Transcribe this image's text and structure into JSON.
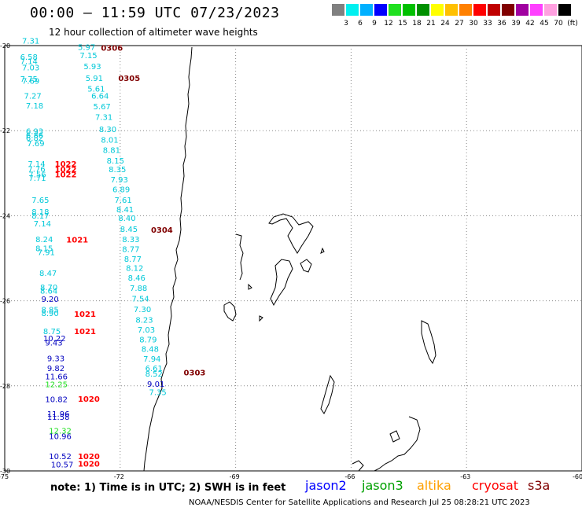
{
  "header": {
    "title": "00:00 – 11:59 UTC 07/23/2023",
    "subtitle": "12 hour collection of altimeter wave heights"
  },
  "legend": {
    "unit_label": "(ft)",
    "items": [
      {
        "label": "3",
        "color": "#808080"
      },
      {
        "label": "6",
        "color": "#00f0f0"
      },
      {
        "label": "9",
        "color": "#00b0ff"
      },
      {
        "label": "12",
        "color": "#0000ff"
      },
      {
        "label": "15",
        "color": "#20e020"
      },
      {
        "label": "18",
        "color": "#00c000"
      },
      {
        "label": "21",
        "color": "#009000"
      },
      {
        "label": "24",
        "color": "#ffff00"
      },
      {
        "label": "27",
        "color": "#ffc000"
      },
      {
        "label": "30",
        "color": "#ff8000"
      },
      {
        "label": "33",
        "color": "#ff0000"
      },
      {
        "label": "36",
        "color": "#c00000"
      },
      {
        "label": "39",
        "color": "#800000"
      },
      {
        "label": "42",
        "color": "#a000a0"
      },
      {
        "label": "45",
        "color": "#ff40ff"
      },
      {
        "label": "70",
        "color": "#ffa0e0"
      },
      {
        "label": "",
        "color": "#000000"
      }
    ]
  },
  "axes": {
    "lon_labels": [
      "-75",
      "-72",
      "-69",
      "-66",
      "-63",
      "-60"
    ],
    "lat_labels": [
      "-20",
      "-22",
      "-24",
      "-26",
      "-28",
      "-30"
    ]
  },
  "observations": [
    {
      "text": "7.31",
      "lon": -74.55,
      "lat": -19.95,
      "color": "#00c8d8"
    },
    {
      "text": "5.97",
      "lon": -73.1,
      "lat": -20.1,
      "color": "#00c8d8"
    },
    {
      "text": "0306",
      "lon": -72.5,
      "lat": -20.12,
      "color": "#800000",
      "big": true
    },
    {
      "text": "7.15",
      "lon": -73.05,
      "lat": -20.3,
      "color": "#00c8d8"
    },
    {
      "text": "6.58",
      "lon": -74.6,
      "lat": -20.33,
      "color": "#00c8d8"
    },
    {
      "text": "7.14",
      "lon": -74.6,
      "lat": -20.43,
      "color": "#00c8d8"
    },
    {
      "text": "5.93",
      "lon": -72.95,
      "lat": -20.55,
      "color": "#00c8d8"
    },
    {
      "text": "7.03",
      "lon": -74.55,
      "lat": -20.58,
      "color": "#00c8d8"
    },
    {
      "text": "7.75",
      "lon": -74.6,
      "lat": -20.85,
      "color": "#00c8d8"
    },
    {
      "text": "7.69",
      "lon": -74.55,
      "lat": -20.9,
      "color": "#00c8d8"
    },
    {
      "text": "5.91",
      "lon": -72.9,
      "lat": -20.83,
      "color": "#00c8d8"
    },
    {
      "text": "0305",
      "lon": -72.05,
      "lat": -20.83,
      "color": "#800000",
      "big": true
    },
    {
      "text": "5.61",
      "lon": -72.85,
      "lat": -21.08,
      "color": "#00c8d8"
    },
    {
      "text": "7.27",
      "lon": -74.5,
      "lat": -21.25,
      "color": "#00c8d8"
    },
    {
      "text": "6.64",
      "lon": -72.75,
      "lat": -21.25,
      "color": "#00c8d8"
    },
    {
      "text": "7.18",
      "lon": -74.45,
      "lat": -21.48,
      "color": "#00c8d8"
    },
    {
      "text": "5.67",
      "lon": -72.7,
      "lat": -21.5,
      "color": "#00c8d8"
    },
    {
      "text": "7.31",
      "lon": -72.65,
      "lat": -21.75,
      "color": "#00c8d8"
    },
    {
      "text": "6.93",
      "lon": -74.45,
      "lat": -22.08,
      "color": "#00c8d8"
    },
    {
      "text": "8.30",
      "lon": -72.55,
      "lat": -22.03,
      "color": "#00c8d8"
    },
    {
      "text": "6.86",
      "lon": -74.45,
      "lat": -22.17,
      "color": "#00c8d8"
    },
    {
      "text": "6.82",
      "lon": -74.45,
      "lat": -22.24,
      "color": "#00c8d8"
    },
    {
      "text": "8.01",
      "lon": -72.5,
      "lat": -22.28,
      "color": "#00c8d8"
    },
    {
      "text": "7.69",
      "lon": -74.42,
      "lat": -22.37,
      "color": "#00c8d8"
    },
    {
      "text": "8.81",
      "lon": -72.45,
      "lat": -22.52,
      "color": "#00c8d8"
    },
    {
      "text": "7.14",
      "lon": -74.4,
      "lat": -22.85,
      "color": "#00c8d8"
    },
    {
      "text": "1022",
      "lon": -73.7,
      "lat": -22.85,
      "color": "#ff0000",
      "big": true
    },
    {
      "text": "8.15",
      "lon": -72.35,
      "lat": -22.77,
      "color": "#00c8d8"
    },
    {
      "text": "7.76",
      "lon": -74.4,
      "lat": -22.97,
      "color": "#00c8d8"
    },
    {
      "text": "1022",
      "lon": -73.7,
      "lat": -22.98,
      "color": "#ff0000",
      "big": true
    },
    {
      "text": "8.35",
      "lon": -72.3,
      "lat": -22.98,
      "color": "#00c8d8"
    },
    {
      "text": "7.56",
      "lon": -74.38,
      "lat": -23.1,
      "color": "#00c8d8"
    },
    {
      "text": "1022",
      "lon": -73.7,
      "lat": -23.1,
      "color": "#ff0000",
      "big": true
    },
    {
      "text": "7.71",
      "lon": -74.38,
      "lat": -23.18,
      "color": "#00c8d8"
    },
    {
      "text": "7.93",
      "lon": -72.25,
      "lat": -23.22,
      "color": "#00c8d8"
    },
    {
      "text": "6.89",
      "lon": -72.2,
      "lat": -23.45,
      "color": "#00c8d8"
    },
    {
      "text": "7.65",
      "lon": -74.3,
      "lat": -23.7,
      "color": "#00c8d8"
    },
    {
      "text": "7.61",
      "lon": -72.15,
      "lat": -23.7,
      "color": "#00c8d8"
    },
    {
      "text": "8.41",
      "lon": -72.1,
      "lat": -23.92,
      "color": "#00c8d8"
    },
    {
      "text": "8.18",
      "lon": -74.3,
      "lat": -23.97,
      "color": "#00c8d8"
    },
    {
      "text": "8.17",
      "lon": -74.3,
      "lat": -24.07,
      "color": "#00c8d8"
    },
    {
      "text": "8.40",
      "lon": -72.05,
      "lat": -24.12,
      "color": "#00c8d8"
    },
    {
      "text": "7.14",
      "lon": -74.25,
      "lat": -24.25,
      "color": "#00c8d8"
    },
    {
      "text": "8.45",
      "lon": -72.0,
      "lat": -24.38,
      "color": "#00c8d8"
    },
    {
      "text": "0304",
      "lon": -71.2,
      "lat": -24.4,
      "color": "#800000",
      "big": true
    },
    {
      "text": "8.24",
      "lon": -74.2,
      "lat": -24.62,
      "color": "#00c8d8"
    },
    {
      "text": "1021",
      "lon": -73.4,
      "lat": -24.63,
      "color": "#ff0000",
      "big": true
    },
    {
      "text": "8.33",
      "lon": -71.95,
      "lat": -24.62,
      "color": "#00c8d8"
    },
    {
      "text": "8.15",
      "lon": -74.2,
      "lat": -24.83,
      "color": "#00c8d8"
    },
    {
      "text": "8.77",
      "lon": -71.95,
      "lat": -24.85,
      "color": "#00c8d8"
    },
    {
      "text": "7.91",
      "lon": -74.15,
      "lat": -24.93,
      "color": "#00c8d8"
    },
    {
      "text": "8.77",
      "lon": -71.9,
      "lat": -25.08,
      "color": "#00c8d8"
    },
    {
      "text": "8.12",
      "lon": -71.85,
      "lat": -25.3,
      "color": "#00c8d8"
    },
    {
      "text": "8.47",
      "lon": -74.1,
      "lat": -25.42,
      "color": "#00c8d8"
    },
    {
      "text": "8.46",
      "lon": -71.8,
      "lat": -25.53,
      "color": "#00c8d8"
    },
    {
      "text": "8.70",
      "lon": -74.08,
      "lat": -25.75,
      "color": "#00c8d8"
    },
    {
      "text": "8.64",
      "lon": -74.08,
      "lat": -25.83,
      "color": "#00c8d8"
    },
    {
      "text": "7.88",
      "lon": -71.75,
      "lat": -25.77,
      "color": "#00c8d8"
    },
    {
      "text": "9.20",
      "lon": -74.05,
      "lat": -26.03,
      "color": "#0000c0"
    },
    {
      "text": "7.54",
      "lon": -71.7,
      "lat": -26.02,
      "color": "#00c8d8"
    },
    {
      "text": "8.85",
      "lon": -74.05,
      "lat": -26.28,
      "color": "#00c8d8"
    },
    {
      "text": "8.90",
      "lon": -74.05,
      "lat": -26.36,
      "color": "#00c8d8"
    },
    {
      "text": "1021",
      "lon": -73.2,
      "lat": -26.38,
      "color": "#ff0000",
      "big": true
    },
    {
      "text": "7.30",
      "lon": -71.65,
      "lat": -26.27,
      "color": "#00c8d8"
    },
    {
      "text": "8.23",
      "lon": -71.6,
      "lat": -26.52,
      "color": "#00c8d8"
    },
    {
      "text": "8.75",
      "lon": -74.0,
      "lat": -26.78,
      "color": "#00c8d8"
    },
    {
      "text": "1021",
      "lon": -73.2,
      "lat": -26.78,
      "color": "#ff0000",
      "big": true
    },
    {
      "text": "7.03",
      "lon": -71.55,
      "lat": -26.75,
      "color": "#00c8d8"
    },
    {
      "text": "10.22",
      "lon": -74.0,
      "lat": -26.95,
      "color": "#0000c0"
    },
    {
      "text": "9.43",
      "lon": -73.95,
      "lat": -27.05,
      "color": "#0000c0"
    },
    {
      "text": "8.79",
      "lon": -71.5,
      "lat": -26.98,
      "color": "#00c8d8"
    },
    {
      "text": "8.48",
      "lon": -71.45,
      "lat": -27.2,
      "color": "#00c8d8"
    },
    {
      "text": "9.33",
      "lon": -73.9,
      "lat": -27.42,
      "color": "#0000c0"
    },
    {
      "text": "7.94",
      "lon": -71.4,
      "lat": -27.43,
      "color": "#00c8d8"
    },
    {
      "text": "9.82",
      "lon": -73.9,
      "lat": -27.65,
      "color": "#0000c0"
    },
    {
      "text": "6.61",
      "lon": -71.35,
      "lat": -27.65,
      "color": "#00c8d8"
    },
    {
      "text": "0303",
      "lon": -70.35,
      "lat": -27.75,
      "color": "#800000",
      "big": true
    },
    {
      "text": "8.52",
      "lon": -71.35,
      "lat": -27.78,
      "color": "#00c8d8"
    },
    {
      "text": "11.66",
      "lon": -73.95,
      "lat": -27.85,
      "color": "#0000c0"
    },
    {
      "text": "9.01",
      "lon": -71.3,
      "lat": -28.02,
      "color": "#0000c0"
    },
    {
      "text": "12.25",
      "lon": -73.95,
      "lat": -28.03,
      "color": "#20e020"
    },
    {
      "text": "7.35",
      "lon": -71.25,
      "lat": -28.22,
      "color": "#00c8d8"
    },
    {
      "text": "10.82",
      "lon": -73.95,
      "lat": -28.38,
      "color": "#0000c0"
    },
    {
      "text": "1020",
      "lon": -73.1,
      "lat": -28.37,
      "color": "#ff0000",
      "big": true
    },
    {
      "text": "11.96",
      "lon": -73.9,
      "lat": -28.72,
      "color": "#0000c0"
    },
    {
      "text": "11.58",
      "lon": -73.9,
      "lat": -28.8,
      "color": "#0000c0"
    },
    {
      "text": "12.32",
      "lon": -73.85,
      "lat": -29.12,
      "color": "#20e020"
    },
    {
      "text": "10.96",
      "lon": -73.85,
      "lat": -29.25,
      "color": "#0000c0"
    },
    {
      "text": "10.52",
      "lon": -73.85,
      "lat": -29.72,
      "color": "#0000c0"
    },
    {
      "text": "1020",
      "lon": -73.1,
      "lat": -29.72,
      "color": "#ff0000",
      "big": true
    },
    {
      "text": "10.57",
      "lon": -73.8,
      "lat": -29.92,
      "color": "#0000c0"
    },
    {
      "text": "1020",
      "lon": -73.1,
      "lat": -29.9,
      "color": "#ff0000",
      "big": true
    }
  ],
  "footer": {
    "note": "note: 1) Time is in UTC; 2) SWH is in feet",
    "credit": "NOAA/NESDIS Center for Satellite Applications and Research   Jul 25 08:28:21 UTC 2023",
    "missions": [
      {
        "name": "jason2",
        "color": "#0000ff"
      },
      {
        "name": "jason3",
        "color": "#00a000"
      },
      {
        "name": "altika",
        "color": "#ffa000"
      },
      {
        "name": "cryosat",
        "color": "#ff0000"
      },
      {
        "name": "s3a",
        "color": "#800000"
      }
    ]
  }
}
